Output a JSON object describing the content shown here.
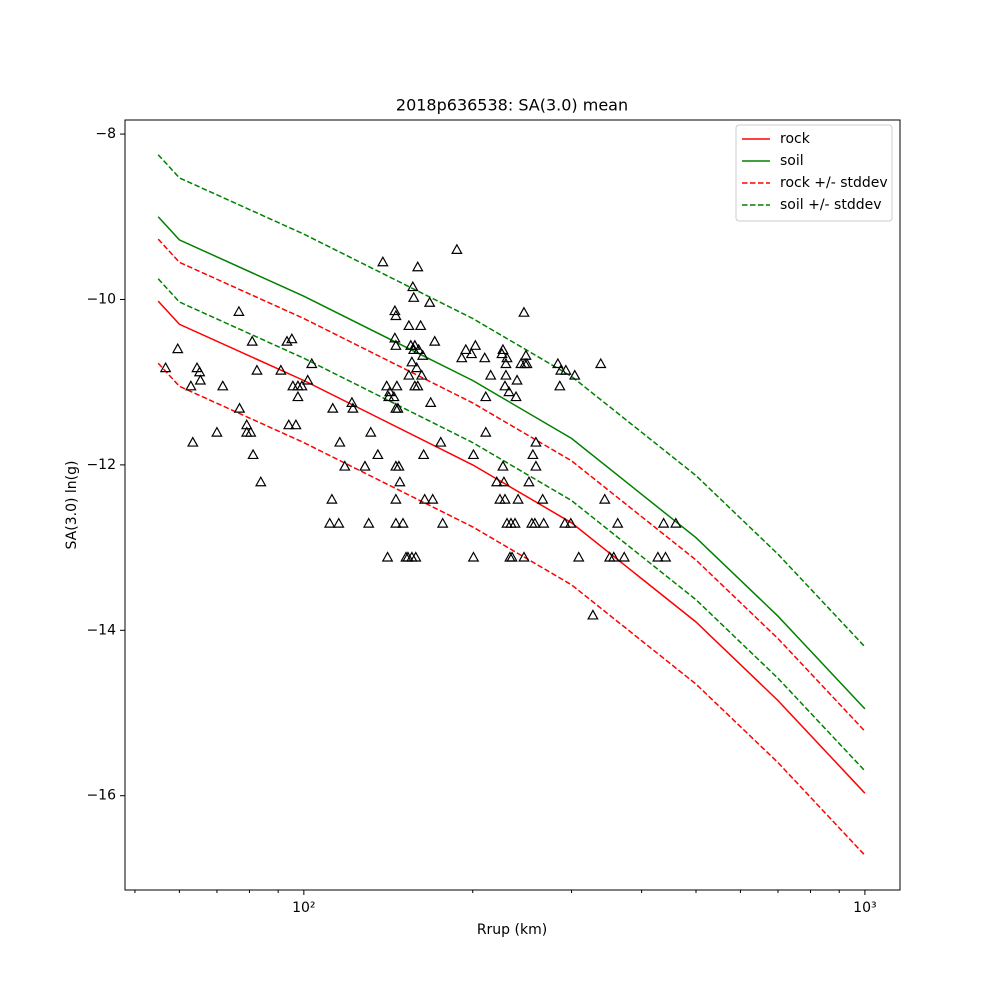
{
  "chart_data": {
    "type": "line",
    "title": "2018p636538: SA(3.0) mean",
    "xlabel": "Rrup (km)",
    "ylabel": "SA(3.0) ln(g)",
    "xscale": "log",
    "xlim": [
      48.0,
      1155
    ],
    "ylim": [
      -17.14,
      -7.83
    ],
    "xticks": [
      {
        "value": 100,
        "label": "10²"
      },
      {
        "value": 1000,
        "label": "10³"
      }
    ],
    "xminor_ticks": [
      50,
      60,
      70,
      80,
      90,
      200,
      300,
      400,
      500,
      600,
      700,
      800,
      900
    ],
    "yticks": [
      {
        "value": -8,
        "label": "−8"
      },
      {
        "value": -10,
        "label": "−10"
      },
      {
        "value": -12,
        "label": "−12"
      },
      {
        "value": -14,
        "label": "−14"
      },
      {
        "value": -16,
        "label": "−16"
      }
    ],
    "legend": "upper right",
    "x": [
      55,
      60,
      100,
      200,
      300,
      500,
      700,
      1000
    ],
    "series": [
      {
        "name": "rock",
        "color": "#ff0000",
        "linestyle": "solid",
        "values": [
          -10.02,
          -10.3,
          -10.98,
          -12.0,
          -12.7,
          -13.9,
          -14.85,
          -15.97
        ]
      },
      {
        "name": "soil",
        "color": "#008000",
        "linestyle": "solid",
        "values": [
          -9.0,
          -9.28,
          -9.96,
          -10.98,
          -11.68,
          -12.88,
          -13.83,
          -14.95
        ]
      },
      {
        "name": "rock +/- stddev",
        "color": "#ff0000",
        "linestyle": "dashed",
        "upper": [
          -9.27,
          -9.55,
          -10.23,
          -11.25,
          -11.95,
          -13.15,
          -14.1,
          -15.22
        ],
        "lower": [
          -10.77,
          -11.05,
          -11.73,
          -12.75,
          -13.45,
          -14.65,
          -15.6,
          -16.72
        ]
      },
      {
        "name": "soil +/- stddev",
        "color": "#008000",
        "linestyle": "dashed",
        "upper": [
          -8.25,
          -8.53,
          -9.21,
          -10.23,
          -10.93,
          -12.13,
          -13.08,
          -14.2
        ],
        "lower": [
          -9.75,
          -10.03,
          -10.71,
          -11.73,
          -12.43,
          -13.63,
          -14.58,
          -15.7
        ]
      }
    ],
    "points": {
      "color": "#000000",
      "x": [
        56.7,
        59.6,
        62.9,
        63.4,
        64.5,
        65.2,
        65.4,
        70.0,
        71.7,
        76.6,
        76.8,
        79.1,
        79.1,
        80.4,
        80.9,
        81.2,
        82.5,
        83.8,
        91.0,
        93.3,
        94.0,
        95.2,
        95.6,
        96.8,
        97.6,
        97.6,
        99.2,
        101.6,
        103.3,
        111.2,
        112.2,
        112.6,
        115.4,
        115.9,
        118.3,
        121.8,
        122.3,
        128.5,
        130.5,
        131.6,
        135.5,
        138.3,
        140.5,
        141.0,
        141.7,
        142.3,
        144.7,
        145.3,
        145.3,
        145.9,
        145.9,
        145.9,
        145.9,
        145.9,
        145.9,
        146.5,
        147.1,
        147.7,
        148.3,
        150.2,
        152.1,
        153.3,
        153.9,
        153.9,
        155.1,
        155.8,
        155.8,
        156.4,
        157.0,
        157.0,
        157.7,
        157.7,
        158.3,
        158.9,
        159.6,
        159.6,
        160.2,
        161.5,
        162.2,
        162.9,
        163.5,
        164.2,
        167.6,
        168.3,
        169.7,
        171.1,
        175.4,
        176.8,
        187.4,
        191.2,
        194.4,
        199.0,
        200.6,
        200.6,
        202.2,
        210.1,
        211.0,
        211.0,
        215.3,
        220.7,
        223.6,
        225.5,
        226.4,
        226.4,
        227.3,
        228.3,
        228.3,
        229.2,
        229.2,
        230.2,
        230.2,
        232.1,
        233.0,
        234.0,
        235.0,
        237.9,
        238.9,
        239.9,
        240.9,
        243.8,
        246.8,
        246.8,
        247.8,
        248.8,
        249.8,
        251.9,
        254.9,
        256.0,
        258.1,
        259.2,
        259.2,
        266.5,
        267.6,
        283.6,
        285.9,
        287.1,
        291.9,
        293.1,
        299.1,
        304.0,
        309.0,
        327.5,
        338.2,
        343.8,
        350.9,
        356.7,
        362.6,
        372.4,
        427.6,
        437.8,
        441.2,
        460.3
      ],
      "y": [
        -10.83,
        -10.6,
        -11.05,
        -11.73,
        -10.83,
        -10.88,
        -10.98,
        -11.61,
        -11.05,
        -10.15,
        -11.32,
        -11.52,
        -11.61,
        -11.61,
        -10.51,
        -11.88,
        -10.86,
        -12.21,
        -10.86,
        -10.51,
        -11.52,
        -10.48,
        -11.05,
        -11.52,
        -11.18,
        -11.05,
        -11.05,
        -10.98,
        -10.78,
        -12.71,
        -12.42,
        -11.32,
        -12.71,
        -11.73,
        -12.02,
        -11.25,
        -11.32,
        -12.02,
        -12.71,
        -11.61,
        -11.88,
        -9.55,
        -11.05,
        -13.12,
        -11.18,
        -11.12,
        -11.18,
        -10.47,
        -10.14,
        -11.32,
        -10.2,
        -10.56,
        -12.02,
        -12.42,
        -12.71,
        -11.05,
        -11.32,
        -12.02,
        -12.21,
        -12.71,
        -13.12,
        -13.12,
        -10.32,
        -10.92,
        -10.56,
        -10.76,
        -13.12,
        -9.85,
        -9.98,
        -10.61,
        -10.56,
        -11.05,
        -13.12,
        -10.83,
        -9.61,
        -11.05,
        -10.61,
        -10.32,
        -10.92,
        -10.68,
        -11.88,
        -12.42,
        -10.04,
        -11.25,
        -12.42,
        -10.51,
        -11.73,
        -12.71,
        -9.4,
        -10.71,
        -10.61,
        -10.66,
        -13.12,
        -11.88,
        -10.56,
        -10.71,
        -11.18,
        -11.61,
        -10.92,
        -12.21,
        -12.42,
        -10.66,
        -10.61,
        -12.02,
        -12.21,
        -11.05,
        -12.42,
        -10.92,
        -10.78,
        -10.71,
        -12.71,
        -11.12,
        -13.12,
        -12.71,
        -13.12,
        -12.71,
        -11.18,
        -10.98,
        -12.42,
        -10.78,
        -10.16,
        -13.12,
        -10.78,
        -10.68,
        -10.78,
        -12.21,
        -12.71,
        -11.88,
        -12.71,
        -11.73,
        -12.02,
        -12.42,
        -12.71,
        -10.78,
        -11.05,
        -10.86,
        -12.71,
        -10.86,
        -12.71,
        -10.92,
        -13.12,
        -13.82,
        -10.78,
        -12.42,
        -13.12,
        -13.12,
        -12.71,
        -13.12,
        -13.12,
        -12.71,
        -13.12,
        -12.71
      ]
    }
  }
}
